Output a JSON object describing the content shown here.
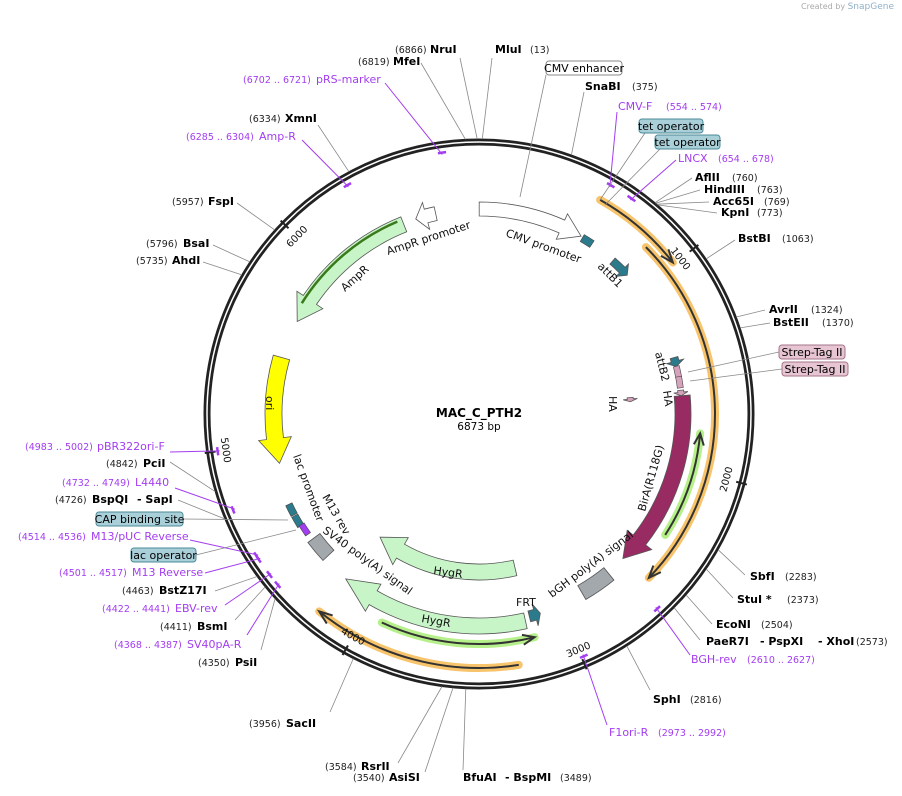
{
  "credit": {
    "prefix": "Created by",
    "brand": "SnapGene"
  },
  "plasmid": {
    "name": "MAC_C_PTH2",
    "length_label": "6873 bp",
    "length": 6873
  },
  "colors": {
    "ring": "#222222",
    "primer": "#a33df0",
    "orange": "#f7c46c",
    "green": "#c8f5c8",
    "yellow": "#ffff00",
    "magenta": "#982c62",
    "teal": "#2b7b8c",
    "gray": "#a3a8ad",
    "pink": "#d7a3bc",
    "box_blue": "#a9cfd8",
    "box_pink": "#e7c5d3"
  },
  "ticks": [
    "1000",
    "2000",
    "3000",
    "4000",
    "5000",
    "6000"
  ],
  "sites": [
    {
      "name": "NruI",
      "loc": "(6866)",
      "pos": 6866
    },
    {
      "name": "MluI",
      "loc": "(13)",
      "pos": 13
    },
    {
      "name": "MfeI",
      "loc": "(6819)",
      "pos": 6819
    },
    {
      "name": "XmnI",
      "loc": "(6334)",
      "pos": 6334
    },
    {
      "name": "FspI",
      "loc": "(5957)",
      "pos": 5957
    },
    {
      "name": "BsaI",
      "loc": "(5796)",
      "pos": 5796
    },
    {
      "name": "AhdI",
      "loc": "(5735)",
      "pos": 5735
    },
    {
      "name": "PciI",
      "loc": "(4842)",
      "pos": 4842
    },
    {
      "name": "BspQI",
      "name2": "- SapI",
      "loc": "(4726)",
      "pos": 4726
    },
    {
      "name": "BstZ17I",
      "loc": "(4463)",
      "pos": 4463
    },
    {
      "name": "BsmI",
      "loc": "(4411)",
      "pos": 4411
    },
    {
      "name": "PsiI",
      "loc": "(4350)",
      "pos": 4350
    },
    {
      "name": "SacII",
      "loc": "(3956)",
      "pos": 3956
    },
    {
      "name": "RsrII",
      "loc": "(3584)",
      "pos": 3584
    },
    {
      "name": "AsiSI",
      "loc": "(3540)",
      "pos": 3540
    },
    {
      "name": "BfuAI",
      "name2": "- BspMI",
      "loc": "(3489)",
      "pos": 3489
    },
    {
      "name": "SnaBI",
      "loc": "(375)",
      "pos": 375
    },
    {
      "name": "AflII",
      "loc": "(760)",
      "pos": 760
    },
    {
      "name": "HindIII",
      "loc": "(763)",
      "pos": 763
    },
    {
      "name": "Acc65I",
      "loc": "(769)",
      "pos": 769
    },
    {
      "name": "KpnI",
      "loc": "(773)",
      "pos": 773
    },
    {
      "name": "BstBI",
      "loc": "(1063)",
      "pos": 1063
    },
    {
      "name": "AvrII",
      "loc": "(1324)",
      "pos": 1324
    },
    {
      "name": "BstEII",
      "loc": "(1370)",
      "pos": 1370
    },
    {
      "name": "SbfI",
      "loc": "(2283)",
      "pos": 2283
    },
    {
      "name": "StuI *",
      "loc": "(2373)",
      "pos": 2373
    },
    {
      "name": "EcoNI",
      "loc": "(2504)",
      "pos": 2504
    },
    {
      "name": "PaeR7I",
      "name2": "- PspXI",
      "name3": "- XhoI",
      "loc": "(2573)",
      "pos": 2573
    },
    {
      "name": "SphI",
      "loc": "(2816)",
      "pos": 2816
    }
  ],
  "primers": [
    {
      "name": "pRS-marker",
      "loc": "(6702 .. 6721)",
      "start": 6702,
      "end": 6721
    },
    {
      "name": "Amp-R",
      "loc": "(6285 .. 6304)",
      "start": 6285,
      "end": 6304
    },
    {
      "name": "CMV-F",
      "loc": "(554 .. 574)",
      "start": 554,
      "end": 574
    },
    {
      "name": "LNCX",
      "loc": "(654 .. 678)",
      "start": 654,
      "end": 678
    },
    {
      "name": "pBR322ori-F",
      "loc": "(4983 .. 5002)",
      "start": 4983,
      "end": 5002
    },
    {
      "name": "L4440",
      "loc": "(4732 .. 4749)",
      "start": 4732,
      "end": 4749
    },
    {
      "name": "M13/pUC Reverse",
      "loc": "(4514 .. 4536)",
      "start": 4514,
      "end": 4536
    },
    {
      "name": "M13 Reverse",
      "loc": "(4501 .. 4517)",
      "start": 4501,
      "end": 4517
    },
    {
      "name": "EBV-rev",
      "loc": "(4422 .. 4441)",
      "start": 4422,
      "end": 4441
    },
    {
      "name": "SV40pA-R",
      "loc": "(4368 .. 4387)",
      "start": 4368,
      "end": 4387
    },
    {
      "name": "BGH-rev",
      "loc": "(2610 .. 2627)",
      "start": 2610,
      "end": 2627
    },
    {
      "name": "F1ori-R",
      "loc": "(2973 .. 2992)",
      "start": 2973,
      "end": 2992
    }
  ],
  "boxes": [
    {
      "name": "CMV enhancer",
      "kind": "white"
    },
    {
      "name": "tet operator",
      "kind": "blue"
    },
    {
      "name": "tet operator",
      "kind": "blue"
    },
    {
      "name": "CAP binding site",
      "kind": "blue"
    },
    {
      "name": "lac operator",
      "kind": "blue"
    },
    {
      "name": "Strep-Tag II",
      "kind": "pink"
    },
    {
      "name": "Strep-Tag II",
      "kind": "pink"
    }
  ],
  "features": [
    {
      "name": "CMV promoter",
      "start": 1,
      "end": 570,
      "dir": 1
    },
    {
      "name": "AmpR promoter",
      "start": 6530,
      "end": 6640,
      "dir": -1
    },
    {
      "name": "AmpR",
      "start": 5670,
      "end": 6460,
      "dir": -1
    },
    {
      "name": "ori",
      "start": 4890,
      "end": 5460,
      "dir": -1
    },
    {
      "name": "lac promoter"
    },
    {
      "name": "M13 rev"
    },
    {
      "name": "SV40 poly(A) signal",
      "start": 4330,
      "end": 4450
    },
    {
      "name": "HygR",
      "start": 3185,
      "end": 4177,
      "dir": 1
    },
    {
      "name": "HygR",
      "start": 3195,
      "end": 4180,
      "dir": 1
    },
    {
      "name": "FRT",
      "start": 3110,
      "end": 3170
    },
    {
      "name": "bGH poly(A) signal",
      "start": 2690,
      "end": 2865
    },
    {
      "name": "BirA(R118G)",
      "start": 1620,
      "end": 2580,
      "dir": 1
    },
    {
      "name": "attB1",
      "start": 785,
      "end": 895
    },
    {
      "name": "attB2",
      "start": 1410,
      "end": 1460
    },
    {
      "name": "HA",
      "start": 1590,
      "end": 1620
    },
    {
      "name": "HA",
      "start": 1600,
      "end": 1630
    }
  ]
}
